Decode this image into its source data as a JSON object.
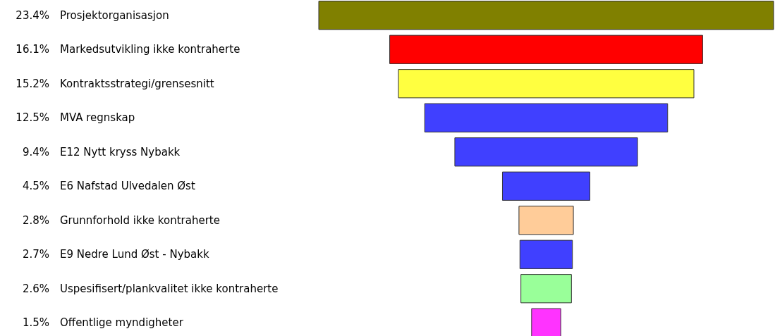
{
  "chart_data": {
    "type": "other",
    "categories": [
      "Prosjektorganisasjon",
      "Markedsutvikling ikke kontraherte",
      "Kontraktsstrategi/grensesnitt",
      "MVA regnskap",
      "E12 Nytt kryss Nybakk",
      "E6 Nafstad Ulvedalen Øst",
      "Grunnforhold ikke kontraherte",
      "E9 Nedre Lund Øst - Nybakk",
      "Uspesifisert/plankvalitet ikke kontraherte",
      "Offentlige myndigheter"
    ],
    "values": [
      23.4,
      16.1,
      15.2,
      12.5,
      9.4,
      4.5,
      2.8,
      2.7,
      2.6,
      1.5
    ],
    "value_labels": [
      "23.4%",
      "16.1%",
      "15.2%",
      "12.5%",
      "9.4%",
      "4.5%",
      "2.8%",
      "2.7%",
      "2.6%",
      "1.5%"
    ],
    "colors": [
      "#808000",
      "#ff0000",
      "#ffff40",
      "#4040ff",
      "#4040ff",
      "#4040ff",
      "#ffcc99",
      "#4040ff",
      "#99ff99",
      "#ff33ff"
    ]
  }
}
